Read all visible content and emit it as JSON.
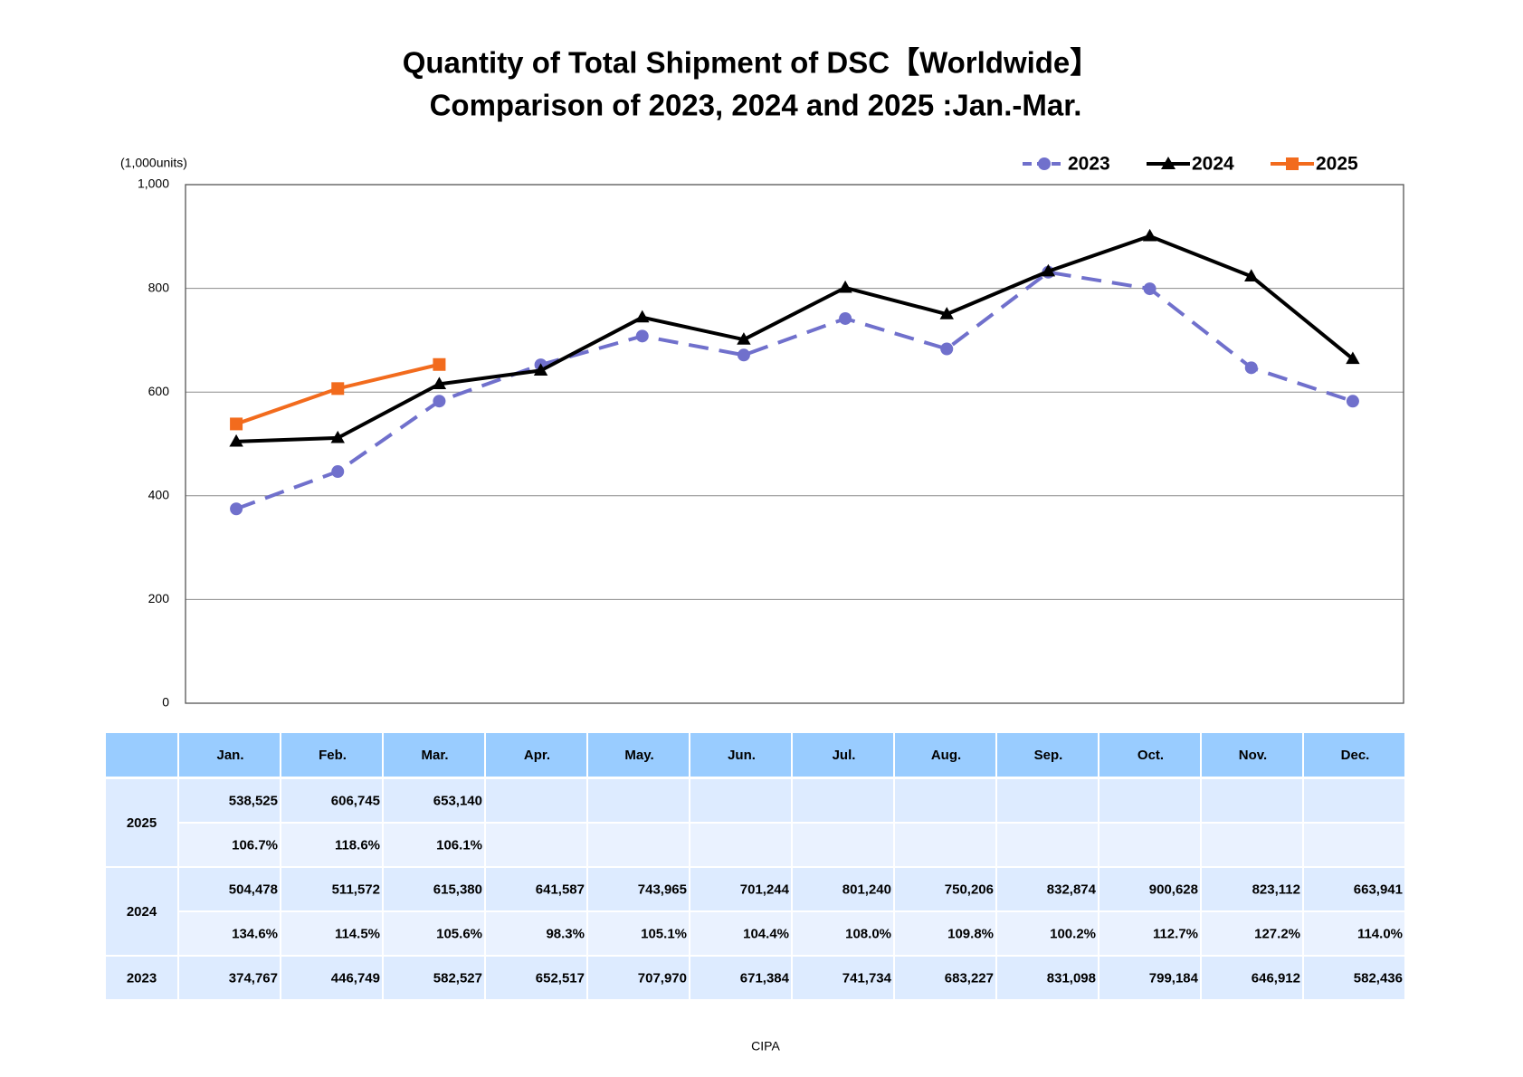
{
  "chart_data": {
    "type": "line",
    "title": "Quantity of Total Shipment of DSC【Worldwide】",
    "subtitle": "Comparison of 2023, 2024 and 2025 :Jan.-Mar.",
    "y_axis_label": "(1,000units)",
    "source": "CIPA",
    "categories": [
      "Jan.",
      "Feb.",
      "Mar.",
      "Apr.",
      "May.",
      "Jun.",
      "Jul.",
      "Aug.",
      "Sep.",
      "Oct.",
      "Nov.",
      "Dec."
    ],
    "ylim": [
      0,
      1000
    ],
    "yticks": [
      0,
      200,
      400,
      600,
      800,
      {
        "value": 1000,
        "label": "1,000"
      }
    ],
    "grid": true,
    "legend": "top-right",
    "series": [
      {
        "name": "2023",
        "color": "#7070cc",
        "dash": true,
        "marker": "circle",
        "values": [
          374.767,
          446.749,
          582.527,
          652.517,
          707.97,
          671.384,
          741.734,
          683.227,
          831.098,
          799.184,
          646.912,
          582.436
        ],
        "value_labels": [
          "374,767",
          "446,749",
          "582,527",
          "652,517",
          "707,970",
          "671,384",
          "741,734",
          "683,227",
          "831,098",
          "799,184",
          "646,912",
          "582,436"
        ]
      },
      {
        "name": "2024",
        "color": "#000000",
        "dash": false,
        "marker": "triangle",
        "values": [
          504.478,
          511.572,
          615.38,
          641.587,
          743.965,
          701.244,
          801.24,
          750.206,
          832.874,
          900.628,
          823.112,
          663.941
        ],
        "value_labels": [
          "504,478",
          "511,572",
          "615,380",
          "641,587",
          "743,965",
          "701,244",
          "801,240",
          "750,206",
          "832,874",
          "900,628",
          "823,112",
          "663,941"
        ],
        "ratio_labels": [
          "134.6%",
          "114.5%",
          "105.6%",
          "98.3%",
          "105.1%",
          "104.4%",
          "108.0%",
          "109.8%",
          "100.2%",
          "112.7%",
          "127.2%",
          "114.0%"
        ]
      },
      {
        "name": "2025",
        "color": "#f26b1d",
        "dash": false,
        "marker": "square",
        "values": [
          538.525,
          606.745,
          653.14,
          null,
          null,
          null,
          null,
          null,
          null,
          null,
          null,
          null
        ],
        "value_labels": [
          "538,525",
          "606,745",
          "653,140",
          null,
          null,
          null,
          null,
          null,
          null,
          null,
          null,
          null
        ],
        "ratio_labels": [
          "106.7%",
          "118.6%",
          "106.1%",
          null,
          null,
          null,
          null,
          null,
          null,
          null,
          null,
          null
        ]
      }
    ]
  }
}
